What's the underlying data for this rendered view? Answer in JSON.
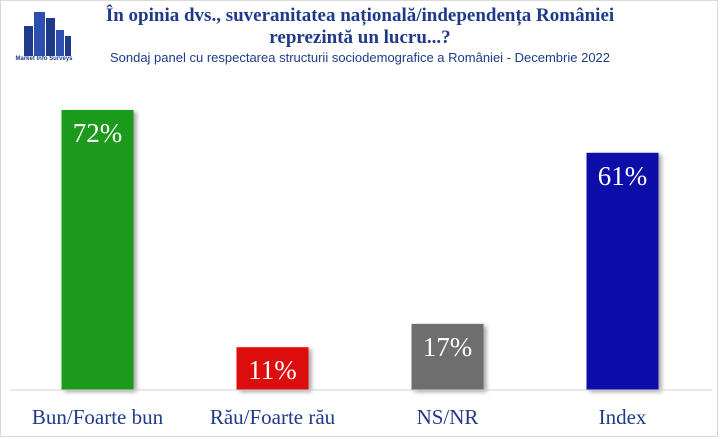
{
  "header": {
    "title_line1": "În opinia dvs., suveranitatea națională/independența României",
    "title_line2": "reprezintă un lucru...?",
    "subtitle": "Sondaj panel cu respectarea structurii sociodemografice a României - Decembrie 2022",
    "logo_text": "Market Info Surveys"
  },
  "chart_data": {
    "type": "bar",
    "categories": [
      "Bun/Foarte bun",
      "Rău/Foarte rău",
      "NS/NR",
      "Index"
    ],
    "values": [
      72,
      11,
      17,
      61
    ],
    "value_labels": [
      "72%",
      "11%",
      "17%",
      "61%"
    ],
    "colors": [
      "#1a9a1a",
      "#dd1111",
      "#6e6e6e",
      "#1111aa"
    ],
    "ylim": [
      0,
      75
    ],
    "grid": false,
    "legend": "none"
  }
}
